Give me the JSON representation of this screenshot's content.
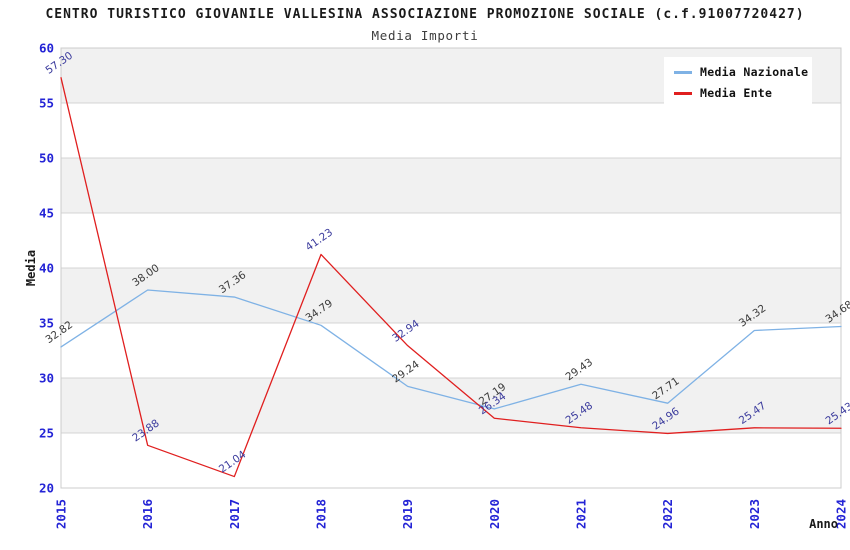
{
  "chart_data": {
    "type": "line",
    "title": "CENTRO TURISTICO GIOVANILE VALLESINA ASSOCIAZIONE PROMOZIONE SOCIALE (c.f.91007720427)",
    "subtitle": "Media Importi",
    "xlabel": "Anno",
    "ylabel": "Media",
    "x": [
      "2015",
      "2016",
      "2017",
      "2018",
      "2019",
      "2020",
      "2021",
      "2022",
      "2023",
      "2024"
    ],
    "ylim": [
      20,
      60
    ],
    "ytick_step": 5,
    "yticks": [
      20,
      25,
      30,
      35,
      40,
      45,
      50,
      55,
      60
    ],
    "grid": "horizontal, alternating shaded bands",
    "legend_position": "top-right",
    "series": [
      {
        "name": "Media Nazionale",
        "color": "#7fb2e5",
        "label_color": "#3a3a3a",
        "values": [
          32.82,
          38.0,
          37.36,
          34.79,
          29.24,
          27.19,
          29.43,
          27.71,
          34.32,
          34.68
        ]
      },
      {
        "name": "Media Ente",
        "color": "#e01f1f",
        "label_color": "#3b3b9d",
        "values": [
          57.3,
          23.88,
          21.04,
          41.23,
          32.94,
          26.34,
          25.48,
          24.96,
          25.47,
          25.43
        ]
      }
    ],
    "style": {
      "tick_label_color": "#2424d6",
      "band_color": "#f1f1f1",
      "gridline_color": "#d4d4d4",
      "frame_color": "#cccccc",
      "axis_title_color": "#1a1a1a"
    }
  }
}
